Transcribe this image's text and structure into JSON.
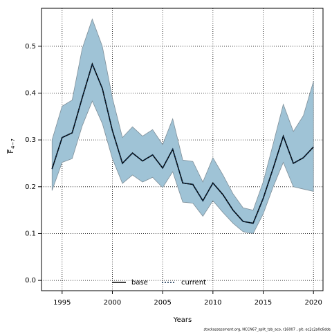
{
  "chart_data": {
    "type": "line",
    "xlabel": "Years",
    "ylabel": "F",
    "ylabel_sub": "4−7",
    "footnote": "stockassessment.org, NCCN67_split_tsb_aco, r16007 , git: ec2c2a0c6dde",
    "x": [
      1994,
      1995,
      1996,
      1997,
      1998,
      1999,
      2000,
      2001,
      2002,
      2003,
      2004,
      2005,
      2006,
      2007,
      2008,
      2009,
      2010,
      2011,
      2012,
      2013,
      2014,
      2015,
      2016,
      2017,
      2018,
      2019,
      2020
    ],
    "band": {
      "color": "#9fc3d6",
      "upper": [
        0.3,
        0.372,
        0.385,
        0.495,
        0.558,
        0.5,
        0.39,
        0.305,
        0.328,
        0.308,
        0.322,
        0.29,
        0.345,
        0.257,
        0.254,
        0.21,
        0.262,
        0.225,
        0.185,
        0.155,
        0.15,
        0.21,
        0.292,
        0.376,
        0.318,
        0.352,
        0.425
      ],
      "lower": [
        0.192,
        0.252,
        0.26,
        0.33,
        0.383,
        0.335,
        0.26,
        0.207,
        0.225,
        0.21,
        0.22,
        0.198,
        0.232,
        0.167,
        0.165,
        0.137,
        0.17,
        0.145,
        0.122,
        0.104,
        0.1,
        0.142,
        0.2,
        0.252,
        0.2,
        0.195,
        0.19
      ]
    },
    "series": [
      {
        "name": "base",
        "color": "#000000",
        "dash": false,
        "values": [
          0.238,
          0.305,
          0.315,
          0.39,
          0.462,
          0.41,
          0.32,
          0.25,
          0.272,
          0.255,
          0.268,
          0.24,
          0.28,
          0.208,
          0.205,
          0.17,
          0.208,
          0.183,
          0.15,
          0.126,
          0.122,
          0.175,
          0.24,
          0.308,
          0.25,
          0.262,
          0.285
        ]
      },
      {
        "name": "current",
        "color": "#0b2a4a",
        "dash": true,
        "values": [
          0.238,
          0.305,
          0.315,
          0.39,
          0.462,
          0.41,
          0.32,
          0.25,
          0.272,
          0.255,
          0.268,
          0.24,
          0.28,
          0.208,
          0.205,
          0.17,
          0.208,
          0.183,
          0.15,
          0.126,
          0.122,
          0.175,
          0.24,
          0.308,
          0.25,
          0.262,
          0.285
        ]
      }
    ],
    "xlim": [
      1992.95,
      2020.95
    ],
    "xticks": [
      1995,
      2000,
      2005,
      2010,
      2015,
      2020
    ],
    "ylim": [
      -0.022,
      0.581
    ],
    "yticks": [
      {
        "value": 0,
        "label": "0.0"
      },
      0.1,
      0.2,
      0.3,
      0.4,
      0.5
    ],
    "grid": true,
    "legend": "bottom"
  }
}
